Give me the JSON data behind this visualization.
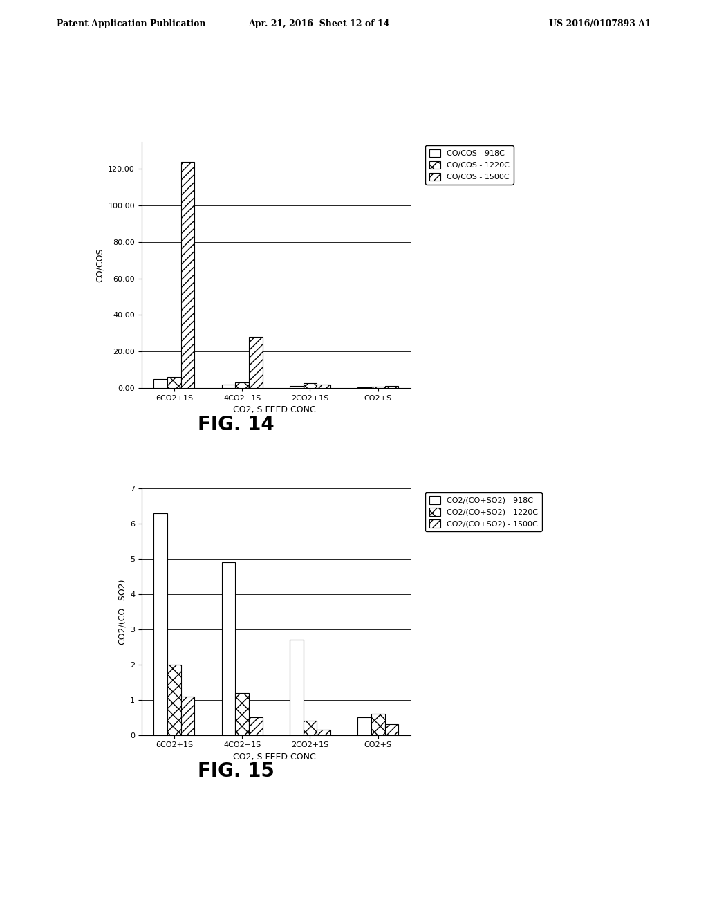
{
  "fig14": {
    "categories": [
      "6CO2+1S",
      "4CO2+1S",
      "2CO2+1S",
      "CO2+S"
    ],
    "series": [
      {
        "label": "CO/COS - 918C",
        "values": [
          5.0,
          2.0,
          1.0,
          0.4
        ],
        "hatch": "",
        "facecolor": "white",
        "edgecolor": "black"
      },
      {
        "label": "CO/COS - 1220C",
        "values": [
          6.0,
          3.0,
          2.5,
          0.8
        ],
        "hatch": "xx",
        "facecolor": "white",
        "edgecolor": "black"
      },
      {
        "label": "CO/COS - 1500C",
        "values": [
          124.0,
          28.0,
          2.0,
          1.2
        ],
        "hatch": "///",
        "facecolor": "white",
        "edgecolor": "black"
      }
    ],
    "ylabel": "CO/COS",
    "xlabel": "CO2, S FEED CONC.",
    "ylim": [
      0,
      135
    ],
    "yticks": [
      0.0,
      20.0,
      40.0,
      60.0,
      80.0,
      100.0,
      120.0
    ],
    "fig_label": "FIG. 14"
  },
  "fig15": {
    "categories": [
      "6CO2+1S",
      "4CO2+1S",
      "2CO2+1S",
      "CO2+S"
    ],
    "series": [
      {
        "label": "CO2/(CO+SO2) - 918C",
        "values": [
          6.3,
          4.9,
          2.7,
          0.5
        ],
        "hatch": "",
        "facecolor": "white",
        "edgecolor": "black"
      },
      {
        "label": "CO2/(CO+SO2) - 1220C",
        "values": [
          2.0,
          1.2,
          0.4,
          0.6
        ],
        "hatch": "xx",
        "facecolor": "white",
        "edgecolor": "black"
      },
      {
        "label": "CO2/(CO+SO2) - 1500C",
        "values": [
          1.1,
          0.5,
          0.15,
          0.3
        ],
        "hatch": "///",
        "facecolor": "white",
        "edgecolor": "black"
      }
    ],
    "ylabel": "CO2/(CO+SO2)",
    "xlabel": "CO2, S FEED CONC.",
    "ylim": [
      0,
      7
    ],
    "yticks": [
      0,
      1,
      2,
      3,
      4,
      5,
      6,
      7
    ],
    "fig_label": "FIG. 15"
  },
  "header_left": "Patent Application Publication",
  "header_date": "Apr. 21, 2016  Sheet 12 of 14",
  "header_right": "US 2016/0107893 A1",
  "background_color": "#ffffff"
}
